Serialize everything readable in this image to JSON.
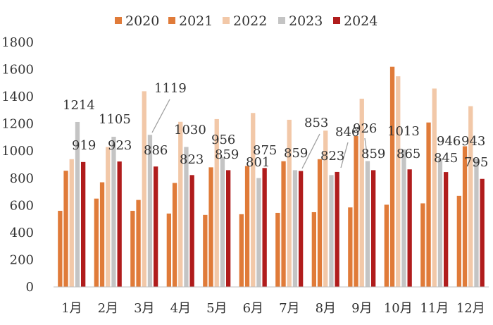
{
  "chart_data": {
    "type": "bar",
    "categories": [
      "1月",
      "2月",
      "3月",
      "4月",
      "5月",
      "6月",
      "7月",
      "8月",
      "9月",
      "10月",
      "11月",
      "12月"
    ],
    "series": [
      {
        "name": "2020",
        "color": "#e07b39",
        "values": [
          560,
          650,
          560,
          540,
          530,
          535,
          545,
          550,
          585,
          605,
          615,
          670
        ]
      },
      {
        "name": "2021",
        "color": "#e07b39",
        "values": [
          855,
          770,
          640,
          765,
          880,
          890,
          925,
          940,
          1110,
          1620,
          1210,
          1035
        ]
      },
      {
        "name": "2022",
        "color": "#f2c8a8",
        "values": [
          940,
          1030,
          1440,
          1215,
          1235,
          1280,
          1230,
          1150,
          1385,
          1550,
          1460,
          1330
        ]
      },
      {
        "name": "2023",
        "color": "#c4c4c4",
        "values": [
          1214,
          1105,
          1119,
          1030,
          956,
          801,
          859,
          823,
          926,
          1013,
          946,
          943
        ]
      },
      {
        "name": "2024",
        "color": "#b01c1c",
        "values": [
          919,
          923,
          886,
          823,
          859,
          875,
          853,
          846,
          859,
          865,
          845,
          795
        ]
      }
    ],
    "y_ticks": [
      "0",
      "200",
      "400",
      "600",
      "800",
      "1000",
      "1200",
      "1400",
      "1600",
      "1800"
    ],
    "ylim": [
      0,
      1800
    ],
    "legend_position": "top",
    "grid": false,
    "data_labels": [
      {
        "month": 0,
        "series": 3,
        "text": "1214"
      },
      {
        "month": 0,
        "series": 4,
        "text": "919"
      },
      {
        "month": 1,
        "series": 3,
        "text": "1105"
      },
      {
        "month": 1,
        "series": 4,
        "text": "923"
      },
      {
        "month": 2,
        "series": 3,
        "text": "1119"
      },
      {
        "month": 2,
        "series": 4,
        "text": "886"
      },
      {
        "month": 3,
        "series": 3,
        "text": "1030"
      },
      {
        "month": 3,
        "series": 4,
        "text": "823"
      },
      {
        "month": 4,
        "series": 3,
        "text": "956"
      },
      {
        "month": 4,
        "series": 4,
        "text": "859"
      },
      {
        "month": 5,
        "series": 3,
        "text": "801"
      },
      {
        "month": 5,
        "series": 4,
        "text": "875"
      },
      {
        "month": 6,
        "series": 3,
        "text": "859"
      },
      {
        "month": 6,
        "series": 4,
        "text": "853"
      },
      {
        "month": 7,
        "series": 3,
        "text": "823"
      },
      {
        "month": 7,
        "series": 4,
        "text": "846"
      },
      {
        "month": 8,
        "series": 3,
        "text": "926"
      },
      {
        "month": 8,
        "series": 4,
        "text": "859"
      },
      {
        "month": 9,
        "series": 3,
        "text": "1013"
      },
      {
        "month": 9,
        "series": 4,
        "text": "865"
      },
      {
        "month": 10,
        "series": 3,
        "text": "946"
      },
      {
        "month": 10,
        "series": 4,
        "text": "845"
      },
      {
        "month": 11,
        "series": 3,
        "text": "943"
      },
      {
        "month": 11,
        "series": 4,
        "text": "795"
      }
    ]
  }
}
